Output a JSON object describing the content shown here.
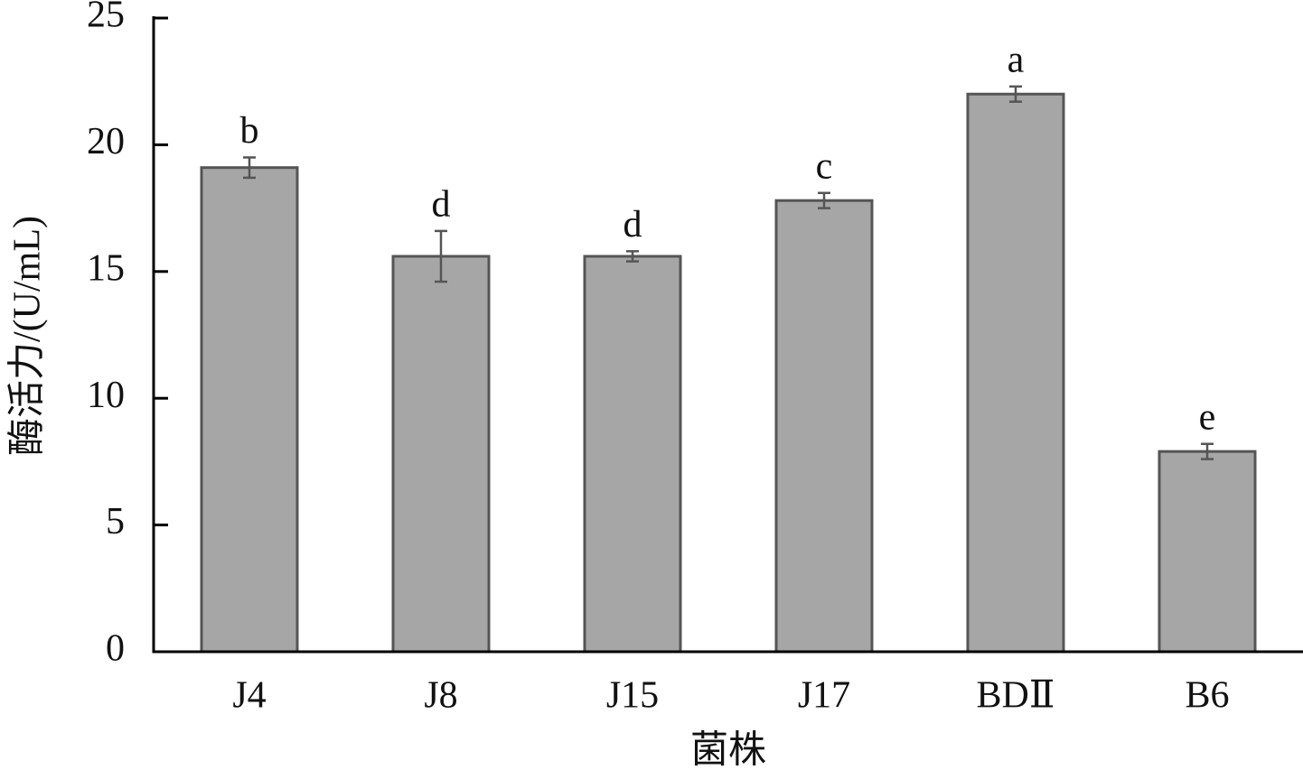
{
  "chart_data": {
    "type": "bar",
    "x_label": "菌株",
    "y_label": "酶活力/(U/mL)",
    "categories": [
      "J4",
      "J8",
      "J15",
      "J17",
      "BDⅡ",
      "B6"
    ],
    "values": [
      19.1,
      15.6,
      15.6,
      17.8,
      22.0,
      7.9
    ],
    "errors": [
      0.4,
      1.0,
      0.2,
      0.3,
      0.3,
      0.3
    ],
    "significance": [
      "b",
      "d",
      "d",
      "c",
      "a",
      "e"
    ],
    "color": "#a6a6a6",
    "ylim": [
      0,
      25
    ],
    "yticks": [
      0,
      5,
      10,
      15,
      20,
      25
    ],
    "grid": false
  }
}
